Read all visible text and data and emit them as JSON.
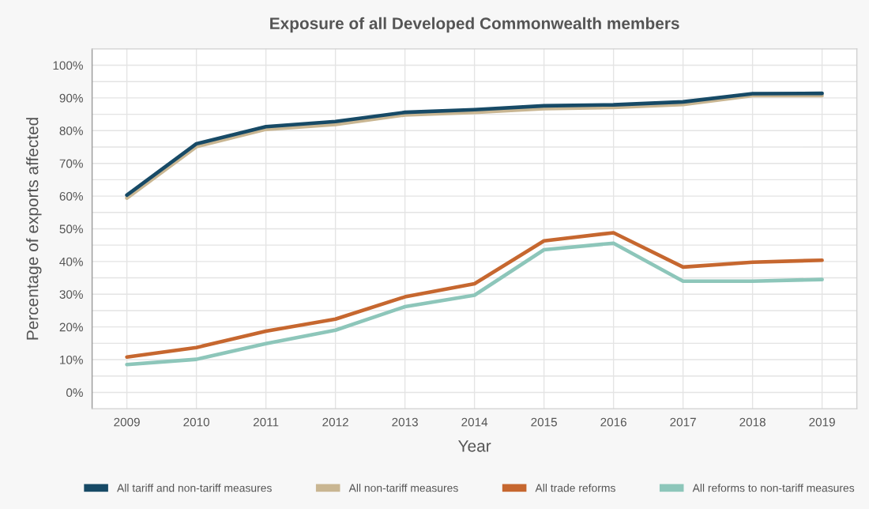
{
  "chart_data": {
    "type": "line",
    "title": "Exposure of all Developed Commonwealth members",
    "xlabel": "Year",
    "ylabel": "Percentage of exports affected",
    "categories": [
      "2009",
      "2010",
      "2011",
      "2012",
      "2013",
      "2014",
      "2015",
      "2016",
      "2017",
      "2018",
      "2019"
    ],
    "series": [
      {
        "name": "All tariff and non-tariff measures",
        "color": "#174a66",
        "values": [
          60.3,
          76,
          81.2,
          82.8,
          85.6,
          86.4,
          87.6,
          87.9,
          88.8,
          91.3,
          91.4
        ]
      },
      {
        "name": "All non-tariff measures",
        "color": "#c9b692",
        "values": [
          59.4,
          75.1,
          80.4,
          81.9,
          84.8,
          85.6,
          86.7,
          87.1,
          88.0,
          90.7,
          90.7
        ]
      },
      {
        "name": "All trade reforms",
        "color": "#c6672f",
        "values": [
          10.8,
          13.7,
          18.7,
          22.4,
          29.2,
          33.2,
          46.3,
          48.8,
          38.3,
          39.8,
          40.4
        ]
      },
      {
        "name": "All reforms to non-tariff measures",
        "color": "#8dc6ba",
        "values": [
          8.5,
          10.1,
          14.9,
          19.0,
          26.2,
          29.7,
          43.6,
          45.6,
          34.0,
          34.0,
          34.5
        ]
      }
    ],
    "ylim": [
      -5,
      105
    ],
    "yticks": [
      {
        "value": 0,
        "label": "0%"
      },
      {
        "value": 5,
        "label": null
      },
      {
        "value": 10,
        "label": "10%"
      },
      {
        "value": 15,
        "label": null
      },
      {
        "value": 20,
        "label": "20%"
      },
      {
        "value": 25,
        "label": null
      },
      {
        "value": 30,
        "label": "30%"
      },
      {
        "value": 35,
        "label": null
      },
      {
        "value": 40,
        "label": "40%"
      },
      {
        "value": 45,
        "label": null
      },
      {
        "value": 50,
        "label": "50%"
      },
      {
        "value": 55,
        "label": null
      },
      {
        "value": 60,
        "label": "60%"
      },
      {
        "value": 65,
        "label": null
      },
      {
        "value": 70,
        "label": "70%"
      },
      {
        "value": 75,
        "label": null
      },
      {
        "value": 80,
        "label": "80%"
      },
      {
        "value": 85,
        "label": null
      },
      {
        "value": 90,
        "label": "90%"
      },
      {
        "value": 95,
        "label": null
      },
      {
        "value": 100,
        "label": "100%"
      }
    ],
    "grid": true,
    "legend": "bottom",
    "line_style": "solid"
  }
}
